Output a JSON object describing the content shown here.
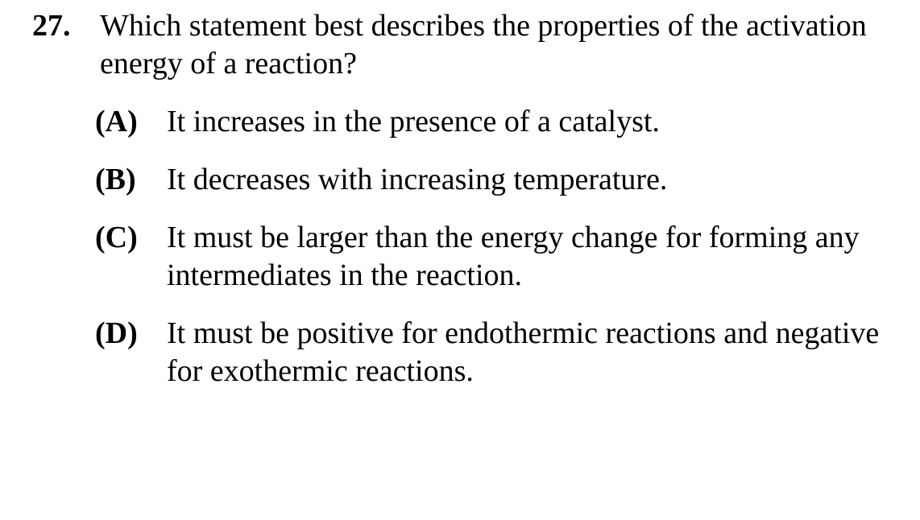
{
  "question": {
    "number": "27.",
    "stem": "Which statement best describes the properties of the activation energy of a reaction?",
    "choices": [
      {
        "letter": "(A)",
        "text": "It increases in the presence of a catalyst."
      },
      {
        "letter": "(B)",
        "text": "It decreases with increasing temperature."
      },
      {
        "letter": "(C)",
        "text": "It must be larger than the energy change for forming any intermediates in the reaction."
      },
      {
        "letter": "(D)",
        "text": "It must be positive for endothermic reactions and negative for exothermic reactions."
      }
    ]
  }
}
